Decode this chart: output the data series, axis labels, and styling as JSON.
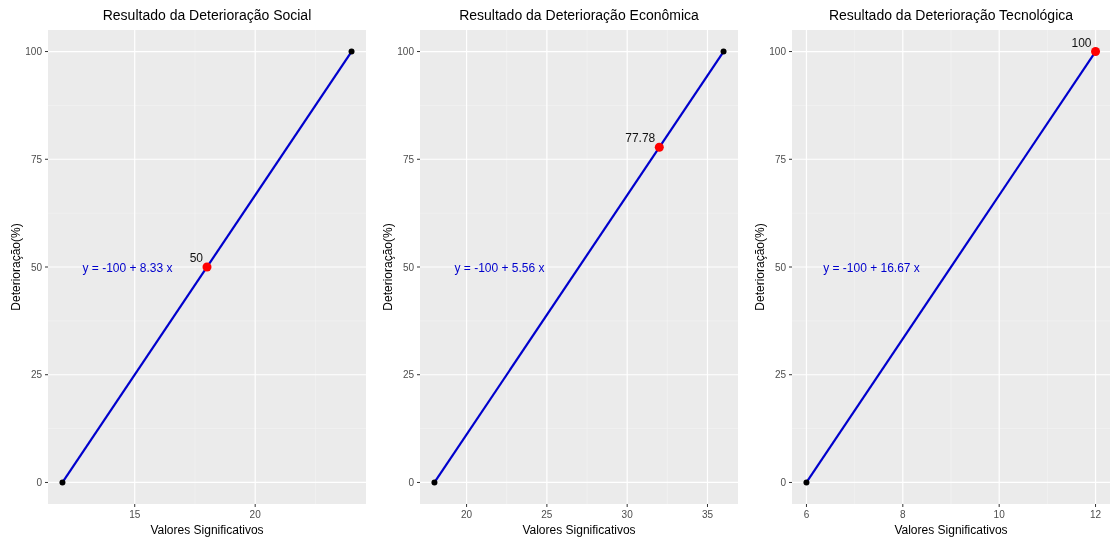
{
  "chart_data": [
    {
      "type": "line",
      "title": "Resultado da Deterioração Social",
      "xlabel": "Valores Significativos",
      "ylabel": "Deterioração(%)",
      "xlim": [
        11.4,
        24.6
      ],
      "xticks": [
        15,
        20
      ],
      "ylim": [
        -5,
        105
      ],
      "yticks": [
        0,
        25,
        50,
        75,
        100
      ],
      "grid": true,
      "annotations": [
        "y = -100 + 8.33 x"
      ],
      "series": [
        {
          "color": "#0000cc",
          "x": [
            12,
            24
          ],
          "values": [
            0,
            100
          ]
        },
        {
          "type": "scatter",
          "marker": "circle",
          "color": "#000000",
          "x": [
            12,
            24
          ],
          "values": [
            0,
            100
          ]
        },
        {
          "type": "scatter",
          "marker": "circle",
          "color": "#ff0000",
          "x": [
            18
          ],
          "values": [
            50
          ],
          "value_labels": [
            "50"
          ]
        }
      ]
    },
    {
      "type": "line",
      "title": "Resultado da Deterioração Econômica",
      "xlabel": "Valores Significativos",
      "ylabel": "Deterioração(%)",
      "xlim": [
        17.1,
        36.9
      ],
      "xticks": [
        20,
        25,
        30,
        35
      ],
      "ylim": [
        -5,
        105
      ],
      "yticks": [
        0,
        25,
        50,
        75,
        100
      ],
      "grid": true,
      "annotations": [
        "y = -100 + 5.56 x"
      ],
      "series": [
        {
          "color": "#0000cc",
          "x": [
            18,
            36
          ],
          "values": [
            0,
            100
          ]
        },
        {
          "type": "scatter",
          "marker": "circle",
          "color": "#000000",
          "x": [
            18,
            36
          ],
          "values": [
            0,
            100
          ]
        },
        {
          "type": "scatter",
          "marker": "circle",
          "color": "#ff0000",
          "x": [
            32
          ],
          "values": [
            77.78
          ],
          "value_labels": [
            "77.78"
          ]
        }
      ]
    },
    {
      "type": "line",
      "title": "Resultado da Deterioração Tecnológica",
      "xlabel": "Valores Significativos",
      "ylabel": "Deterioração(%)",
      "xlim": [
        5.7,
        12.3
      ],
      "xticks": [
        6,
        8,
        10,
        12
      ],
      "ylim": [
        -5,
        105
      ],
      "yticks": [
        0,
        25,
        50,
        75,
        100
      ],
      "grid": true,
      "annotations": [
        "y = -100 + 16.67 x"
      ],
      "series": [
        {
          "color": "#0000cc",
          "x": [
            6,
            12
          ],
          "values": [
            0,
            100
          ]
        },
        {
          "type": "scatter",
          "marker": "circle",
          "color": "#000000",
          "x": [
            6
          ],
          "values": [
            0
          ]
        },
        {
          "type": "scatter",
          "marker": "circle",
          "color": "#ff0000",
          "x": [
            12
          ],
          "values": [
            100
          ],
          "value_labels": [
            "100"
          ]
        }
      ]
    }
  ]
}
